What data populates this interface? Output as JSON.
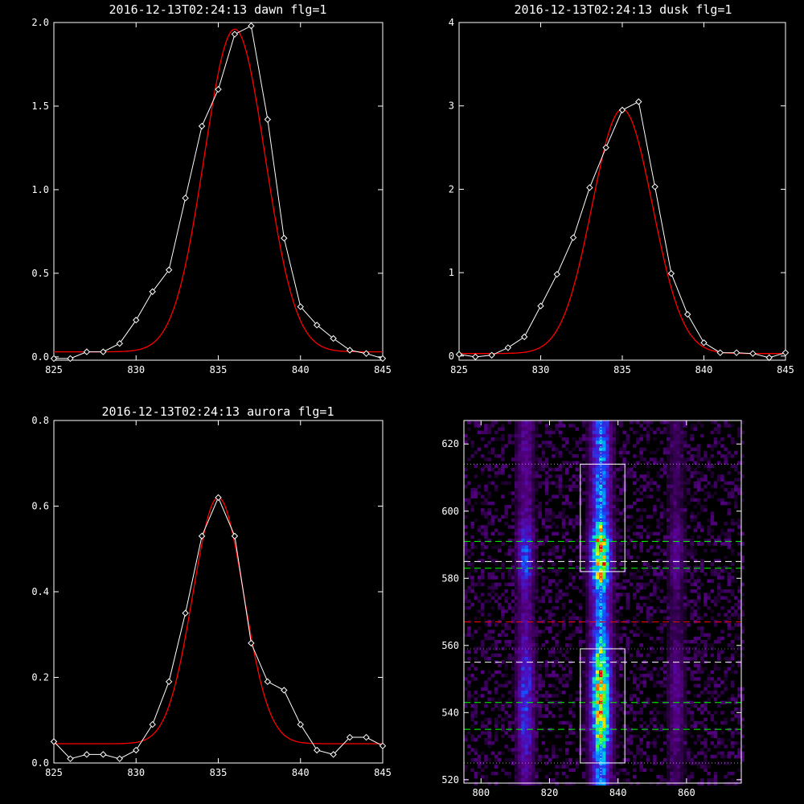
{
  "chart_data": [
    {
      "id": "dawn",
      "type": "line",
      "title": "2016-12-13T02:24:13 dawn flg=1",
      "xlim": [
        825,
        845
      ],
      "ylim": [
        -0.02,
        2.0
      ],
      "x_ticks": [
        825,
        830,
        835,
        840,
        845
      ],
      "x_tick_labels": [
        "825",
        "830",
        "835",
        "840",
        "845"
      ],
      "y_ticks": [
        0.0,
        0.5,
        1.0,
        1.5,
        2.0
      ],
      "y_tick_labels": [
        "0.0",
        "0.5",
        "1.0",
        "1.5",
        "2.0"
      ],
      "series": [
        {
          "kind": "data",
          "color": "#ffffff",
          "marker": "diamond",
          "x": [
            825,
            826,
            827,
            828,
            829,
            830,
            831,
            832,
            833,
            834,
            835,
            836,
            837,
            838,
            839,
            840,
            841,
            842,
            843,
            844,
            845
          ],
          "y": [
            -0.01,
            -0.01,
            0.03,
            0.03,
            0.08,
            0.22,
            0.39,
            0.52,
            0.95,
            1.38,
            1.6,
            1.93,
            1.98,
            1.42,
            0.71,
            0.3,
            0.19,
            0.11,
            0.04,
            0.02,
            -0.01
          ]
        },
        {
          "kind": "fit",
          "color": "#ff0000",
          "gaussian": {
            "amp": 1.93,
            "center": 836.0,
            "sigma": 1.85,
            "offset": 0.03
          }
        }
      ]
    },
    {
      "id": "dusk",
      "type": "line",
      "title": "2016-12-13T02:24:13 dusk flg=1",
      "xlim": [
        825,
        845
      ],
      "ylim": [
        -0.05,
        4.0
      ],
      "x_ticks": [
        825,
        830,
        835,
        840,
        845
      ],
      "x_tick_labels": [
        "825",
        "830",
        "835",
        "840",
        "845"
      ],
      "y_ticks": [
        0,
        1,
        2,
        3,
        4
      ],
      "y_tick_labels": [
        "0",
        "1",
        "2",
        "3",
        "4"
      ],
      "series": [
        {
          "kind": "data",
          "color": "#ffffff",
          "marker": "diamond",
          "x": [
            825,
            826,
            827,
            828,
            829,
            830,
            831,
            832,
            833,
            834,
            835,
            836,
            837,
            838,
            839,
            840,
            841,
            842,
            843,
            844,
            845
          ],
          "y": [
            0.02,
            -0.01,
            0.01,
            0.1,
            0.23,
            0.6,
            0.98,
            1.42,
            2.02,
            2.5,
            2.95,
            3.05,
            2.03,
            0.99,
            0.5,
            0.16,
            0.04,
            0.04,
            0.03,
            -0.02,
            0.04
          ]
        },
        {
          "kind": "fit",
          "color": "#ff0000",
          "gaussian": {
            "amp": 2.93,
            "center": 835.0,
            "sigma": 1.85,
            "offset": 0.03
          }
        }
      ]
    },
    {
      "id": "aurora",
      "type": "line",
      "title": "2016-12-13T02:24:13 aurora flg=1",
      "xlim": [
        825,
        845
      ],
      "ylim": [
        0.0,
        0.8
      ],
      "x_ticks": [
        825,
        830,
        835,
        840,
        845
      ],
      "x_tick_labels": [
        "825",
        "830",
        "835",
        "840",
        "845"
      ],
      "y_ticks": [
        0.0,
        0.2,
        0.4,
        0.6,
        0.8
      ],
      "y_tick_labels": [
        "0.0",
        "0.2",
        "0.4",
        "0.6",
        "0.8"
      ],
      "series": [
        {
          "kind": "data",
          "color": "#ffffff",
          "marker": "diamond",
          "x": [
            825,
            826,
            827,
            828,
            829,
            830,
            831,
            832,
            833,
            834,
            835,
            836,
            837,
            838,
            839,
            840,
            841,
            842,
            843,
            844,
            845
          ],
          "y": [
            0.05,
            0.01,
            0.02,
            0.02,
            0.01,
            0.03,
            0.09,
            0.19,
            0.35,
            0.53,
            0.62,
            0.53,
            0.28,
            0.19,
            0.17,
            0.09,
            0.03,
            0.02,
            0.06,
            0.06,
            0.04
          ]
        },
        {
          "kind": "fit",
          "color": "#ff0000",
          "gaussian": {
            "amp": 0.575,
            "center": 835.0,
            "sigma": 1.55,
            "offset": 0.045
          }
        }
      ]
    },
    {
      "id": "spectral-image",
      "type": "heatmap",
      "title": "",
      "xlim": [
        795,
        876
      ],
      "ylim": [
        519,
        627
      ],
      "x_ticks": [
        800,
        820,
        840,
        860
      ],
      "x_tick_labels": [
        "800",
        "820",
        "840",
        "860"
      ],
      "y_ticks": [
        520,
        540,
        560,
        580,
        600,
        620
      ],
      "y_tick_labels": [
        "520",
        "540",
        "560",
        "580",
        "600",
        "620"
      ],
      "colormap": "rainbow-on-black",
      "emission_columns": [
        {
          "x_center": 813,
          "x_halfwidth": 2.5,
          "strength": 0.45
        },
        {
          "x_center": 835,
          "x_halfwidth": 3.0,
          "strength": 0.95
        },
        {
          "x_center": 857,
          "x_halfwidth": 2.5,
          "strength": 0.25
        }
      ],
      "emission_bands": [
        {
          "y_from": 578,
          "y_to": 596,
          "weight": 1.0
        },
        {
          "y_from": 528,
          "y_to": 560,
          "weight": 0.9
        }
      ],
      "boxes": [
        {
          "x0": 829,
          "x1": 842,
          "y0": 582,
          "y1": 614,
          "color": "#ffffff"
        },
        {
          "x0": 829,
          "x1": 842,
          "y0": 525,
          "y1": 559,
          "color": "#ffffff"
        }
      ],
      "vertical_lines": [
        {
          "x": 835,
          "style": "dotted",
          "color": "#ffffff"
        }
      ],
      "horizontal_lines": [
        {
          "y": 614,
          "style": "dotted",
          "color": "#ff55ff"
        },
        {
          "y": 591,
          "style": "dashed",
          "color": "#00ff00"
        },
        {
          "y": 585,
          "style": "dashed",
          "color": "#ffffff"
        },
        {
          "y": 583,
          "style": "dashed",
          "color": "#00ff00"
        },
        {
          "y": 567,
          "style": "dashed",
          "color": "#ff0000"
        },
        {
          "y": 559,
          "style": "dotted",
          "color": "#ff3333"
        },
        {
          "y": 555,
          "style": "dashed",
          "color": "#ffffff"
        },
        {
          "y": 543,
          "style": "dashed",
          "color": "#00ff00"
        },
        {
          "y": 535,
          "style": "dashed",
          "color": "#00ff00"
        },
        {
          "y": 525,
          "style": "dotted",
          "color": "#ff55ff"
        }
      ]
    }
  ]
}
